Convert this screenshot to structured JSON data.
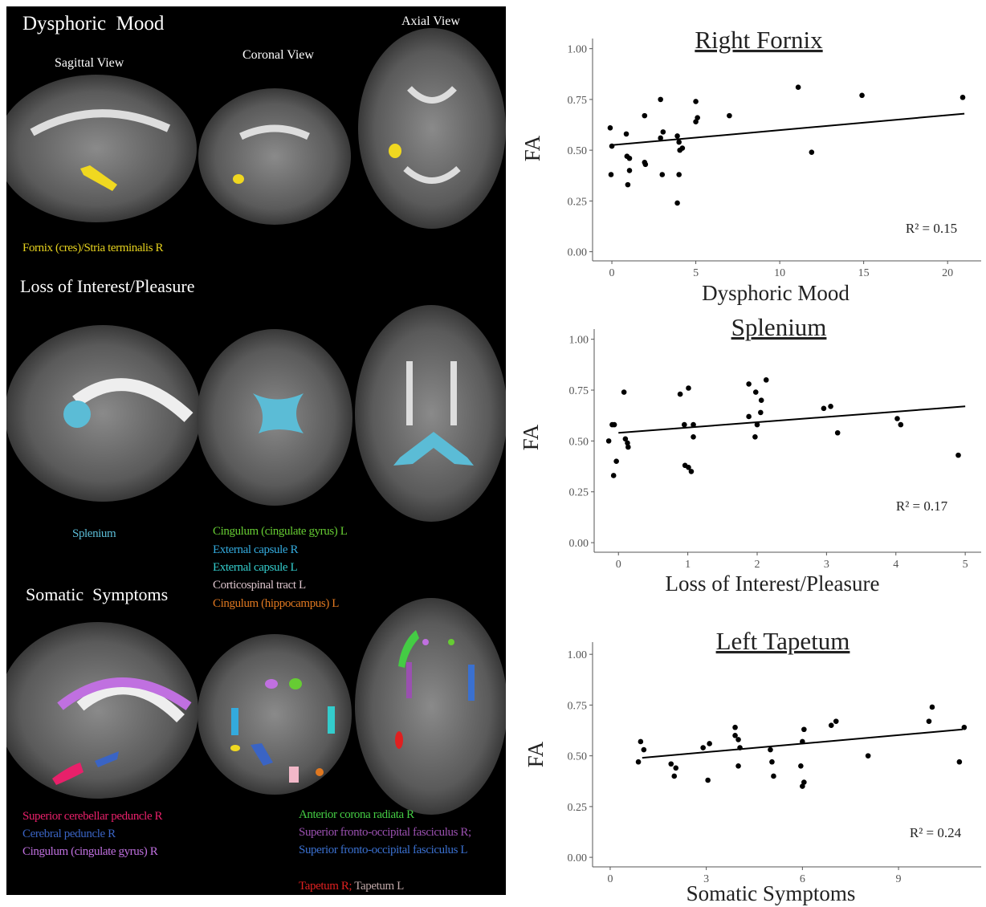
{
  "brain_panel": {
    "sections": [
      {
        "title": "Dysphoric  Mood",
        "views": [
          "Sagittal View",
          "Coronal View",
          "Axial View"
        ],
        "regions": [
          {
            "label": "Fornix (cres)/Stria terminalis R",
            "color": "#e6d21e"
          }
        ]
      },
      {
        "title": "Loss of Interest/Pleasure",
        "regions": [
          {
            "label": "Splenium",
            "color": "#5bbcd6"
          }
        ]
      },
      {
        "title": "Somatic  Symptoms",
        "regions": [
          {
            "label": "Cingulum (cingulate gyrus) L",
            "color": "#66cc33"
          },
          {
            "label": "External capsule R",
            "color": "#33aadd"
          },
          {
            "label": "External capsule L",
            "color": "#33cccc"
          },
          {
            "label": "Corticospinal tract L",
            "color": "#dcc4cc"
          },
          {
            "label": "Cingulum (hippocampus) L",
            "color": "#e07820"
          },
          {
            "label": "Superior cerebellar peduncle R",
            "color": "#e8206a"
          },
          {
            "label": "Cerebral peduncle R",
            "color": "#3a64c4"
          },
          {
            "label": "Cingulum (cingulate gyrus) R",
            "color": "#c070e0"
          },
          {
            "label": "Anterior corona radiata R",
            "color": "#44cc44"
          },
          {
            "label": "Superior fronto-occipital fasciculus R;",
            "color": "#9a50b0"
          },
          {
            "label": "Superior fronto-occipital fasciculus L",
            "color": "#3a70d0"
          },
          {
            "label": "Tapetum R;",
            "color": "#e02020"
          },
          {
            "label": "Tapetum L",
            "color": "#c0a8a8"
          }
        ]
      }
    ]
  },
  "chart_data": [
    {
      "type": "scatter",
      "title": "Right Fornix",
      "x_label": "Dysphoric Mood",
      "y_label": "FA",
      "annotation": "R² = 0.15",
      "color": "#000000",
      "x": [
        -0.1,
        0,
        -0.05,
        0.86,
        0.9,
        1.05,
        1.05,
        0.95,
        1.95,
        1.95,
        2,
        2.9,
        2.9,
        3.05,
        3,
        3.9,
        4,
        4.05,
        4.2,
        4,
        3.9,
        5,
        5.1,
        5,
        7,
        11.1,
        11.9,
        14.9,
        20.9
      ],
      "values": [
        0.61,
        0.52,
        0.38,
        0.58,
        0.47,
        0.46,
        0.4,
        0.33,
        0.67,
        0.44,
        0.43,
        0.75,
        0.56,
        0.59,
        0.38,
        0.57,
        0.54,
        0.5,
        0.51,
        0.38,
        0.24,
        0.74,
        0.66,
        0.64,
        0.67,
        0.81,
        0.49,
        0.77,
        0.76
      ],
      "trend_line": {
        "x": [
          0,
          21
        ],
        "y": [
          0.525,
          0.68
        ]
      },
      "xlim": [
        -1.15,
        22
      ],
      "ylim": [
        -0.045,
        1.05
      ],
      "xticks": [
        0,
        5,
        10,
        15,
        20
      ],
      "yticks": [
        {
          "value": 0,
          "label": "0.00"
        },
        {
          "value": 0.25,
          "label": "0.25"
        },
        {
          "value": 0.5,
          "label": "0.50"
        },
        {
          "value": 0.75,
          "label": "0.75"
        },
        {
          "value": 1,
          "label": "1.00"
        }
      ]
    },
    {
      "type": "scatter",
      "title": "Splenium",
      "x_label": "Loss of Interest/Pleasure",
      "y_label": "FA",
      "annotation": "R² = 0.17",
      "color": "#000000",
      "x": [
        -0.14,
        -0.09,
        -0.06,
        -0.03,
        -0.07,
        0.08,
        0.1,
        0.13,
        0.14,
        0.89,
        0.95,
        1.01,
        0.96,
        1.01,
        1.05,
        1.08,
        1.08,
        1.88,
        1.88,
        1.98,
        2,
        1.97,
        2.05,
        2.06,
        2.13,
        2.96,
        3.06,
        3.16,
        4.02,
        4.07,
        4.9
      ],
      "values": [
        0.5,
        0.58,
        0.58,
        0.4,
        0.33,
        0.74,
        0.51,
        0.49,
        0.47,
        0.73,
        0.58,
        0.76,
        0.38,
        0.37,
        0.35,
        0.58,
        0.52,
        0.78,
        0.62,
        0.74,
        0.58,
        0.52,
        0.64,
        0.7,
        0.8,
        0.66,
        0.67,
        0.54,
        0.61,
        0.58,
        0.43
      ],
      "trend_line": {
        "x": [
          0,
          5
        ],
        "y": [
          0.54,
          0.67
        ]
      },
      "xlim": [
        -0.35,
        5.23
      ],
      "ylim": [
        -0.047,
        1.05
      ],
      "xticks": [
        0,
        1,
        2,
        3,
        4,
        5
      ],
      "yticks": [
        {
          "value": 0,
          "label": "0.00"
        },
        {
          "value": 0.25,
          "label": "0.25"
        },
        {
          "value": 0.5,
          "label": "0.50"
        },
        {
          "value": 0.75,
          "label": "0.75"
        },
        {
          "value": 1,
          "label": "1.00"
        }
      ]
    },
    {
      "type": "scatter",
      "title": "Left Tapetum",
      "x_label": "Somatic Symptoms",
      "y_label": "FA",
      "annotation": "R² = 0.24",
      "color": "#000000",
      "x": [
        0.88,
        0.95,
        1.05,
        1.9,
        2.05,
        2,
        2.9,
        3.1,
        3.05,
        3.9,
        3.9,
        4,
        4.05,
        4,
        5,
        5.05,
        5.1,
        6,
        6.05,
        5.95,
        6,
        6.05,
        6.9,
        7.05,
        8.05,
        9.95,
        10.05,
        10.9,
        11.05
      ],
      "values": [
        0.47,
        0.57,
        0.53,
        0.46,
        0.44,
        0.4,
        0.54,
        0.56,
        0.38,
        0.64,
        0.6,
        0.58,
        0.54,
        0.45,
        0.53,
        0.47,
        0.4,
        0.57,
        0.63,
        0.45,
        0.35,
        0.37,
        0.65,
        0.67,
        0.5,
        0.67,
        0.74,
        0.47,
        0.64
      ],
      "trend_line": {
        "x": [
          1,
          11
        ],
        "y": [
          0.49,
          0.63
        ]
      },
      "xlim": [
        -0.55,
        11.58
      ],
      "ylim": [
        -0.047,
        1.06
      ],
      "xticks": [
        0,
        3,
        6,
        9
      ],
      "yticks": [
        {
          "value": 0,
          "label": "0.00"
        },
        {
          "value": 0.25,
          "label": "0.25"
        },
        {
          "value": 0.5,
          "label": "0.50"
        },
        {
          "value": 0.75,
          "label": "0.75"
        },
        {
          "value": 1,
          "label": "1.00"
        }
      ]
    }
  ]
}
